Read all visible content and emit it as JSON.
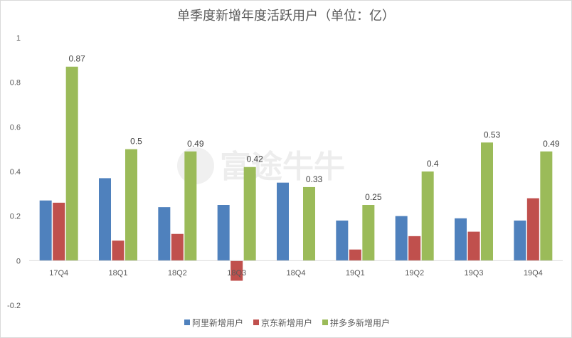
{
  "chart_data": {
    "type": "bar",
    "title": "单季度新增年度活跃用户（单位：亿）",
    "categories": [
      "17Q4",
      "18Q1",
      "18Q2",
      "18Q3",
      "18Q4",
      "19Q1",
      "19Q2",
      "19Q3",
      "19Q4"
    ],
    "series": [
      {
        "name": "阿里新增用户",
        "color": "#4f81bd",
        "values": [
          0.27,
          0.37,
          0.24,
          0.25,
          0.35,
          0.18,
          0.2,
          0.19,
          0.18
        ],
        "labeled": false
      },
      {
        "name": "京东新增用户",
        "color": "#c0504d",
        "values": [
          0.26,
          0.09,
          0.12,
          -0.09,
          0.0,
          0.05,
          0.11,
          0.13,
          0.28
        ],
        "labeled": false
      },
      {
        "name": "拼多多新增用户",
        "color": "#9bbb59",
        "values": [
          0.87,
          0.5,
          0.49,
          0.42,
          0.33,
          0.25,
          0.4,
          0.53,
          0.49
        ],
        "labeled": true
      }
    ],
    "data_labels": [
      "0.87",
      "0.5",
      "0.49",
      "0.42",
      "0.33",
      "0.25",
      "0.4",
      "0.53",
      "0.49"
    ],
    "ylim": [
      -0.2,
      1
    ],
    "yticks": [
      -0.2,
      0,
      0.2,
      0.4,
      0.6,
      0.8,
      1
    ],
    "ytick_labels": [
      "-0.2",
      "0",
      "0.2",
      "0.4",
      "0.6",
      "0.8",
      "1"
    ],
    "xlabel": "",
    "ylabel": "",
    "grid": false,
    "legend_position": "bottom"
  },
  "watermark": {
    "text": "富途牛牛",
    "icon": "futu-logo-icon"
  }
}
